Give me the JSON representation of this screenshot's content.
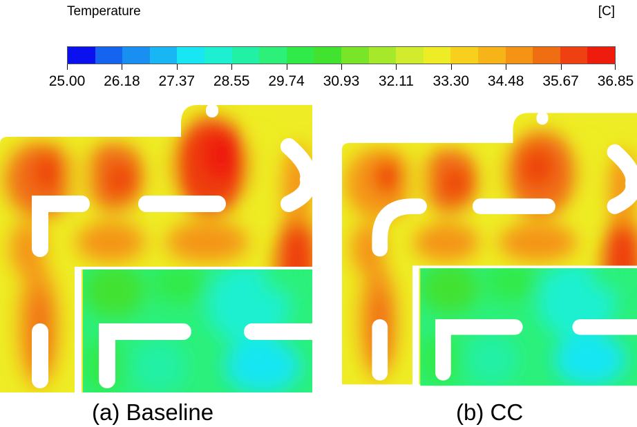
{
  "legend": {
    "title": "Temperature",
    "unit": "[C]",
    "ticks": [
      "25.00",
      "26.18",
      "27.37",
      "28.55",
      "29.74",
      "30.93",
      "32.11",
      "33.30",
      "34.48",
      "35.67",
      "36.85"
    ],
    "colors": [
      "#0a10ee",
      "#1464f0",
      "#1a8ff2",
      "#18b6f2",
      "#18e6f2",
      "#1cf0d0",
      "#22f0a4",
      "#2cf07a",
      "#30ea4a",
      "#42e230",
      "#7ae428",
      "#a6e82a",
      "#d0ec2c",
      "#eeec24",
      "#f6d01c",
      "#f6b418",
      "#f49414",
      "#f06e12",
      "#ee4010",
      "#ee1c0c"
    ]
  },
  "panels": [
    {
      "caption": "(a) Baseline",
      "elbow": "sharp"
    },
    {
      "caption": "(b) CC",
      "elbow": "curved"
    }
  ]
}
